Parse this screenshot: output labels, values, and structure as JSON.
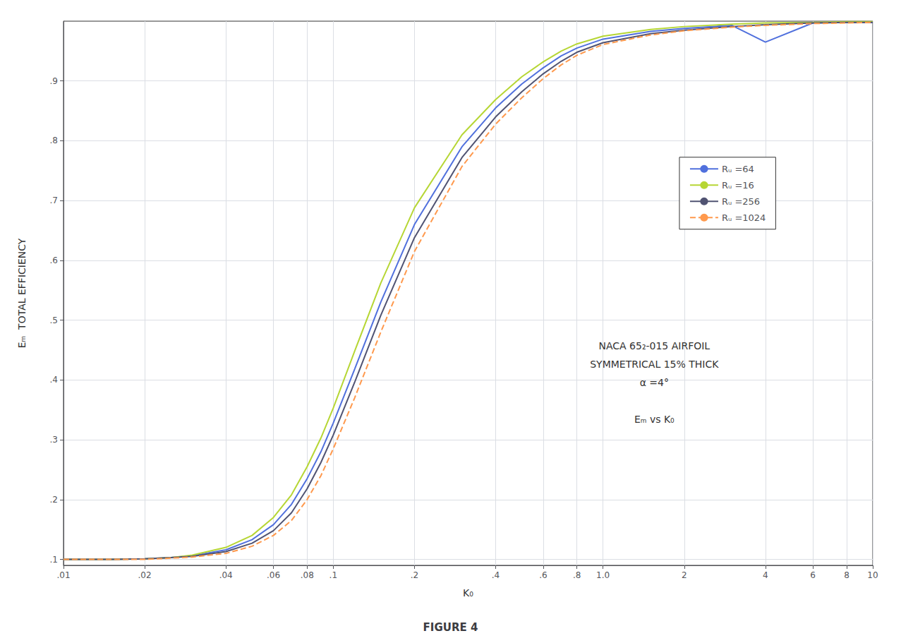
{
  "chart_data": {
    "type": "line",
    "title": "FIGURE 4",
    "xlabel": "K₀",
    "ylabel": "Eₘ  TOTAL EFFICIENCY",
    "log": "x",
    "grid": true,
    "legend": "upper right",
    "xlim": [
      0.01,
      10.0
    ],
    "xticks": [
      {
        "value": 0.01,
        "label": ".01"
      },
      {
        "value": 0.02,
        "label": ".02"
      },
      {
        "value": 0.04,
        "label": ".04"
      },
      {
        "value": 0.06,
        "label": ".06"
      },
      {
        "value": 0.08,
        "label": ".08"
      },
      {
        "value": 0.1,
        "label": ".1"
      },
      {
        "value": 0.2,
        "label": ".2"
      },
      {
        "value": 0.4,
        "label": ".4"
      },
      {
        "value": 0.6,
        "label": ".6"
      },
      {
        "value": 0.8,
        "label": ".8"
      },
      {
        "value": 1.0,
        "label": "1.0"
      },
      2,
      4,
      6,
      8,
      10
    ],
    "ylim": [
      0.09,
      1.0
    ],
    "yticks": [
      {
        "value": 0.1,
        "label": ".1"
      },
      {
        "value": 0.2,
        "label": ".2"
      },
      {
        "value": 0.3,
        "label": ".3"
      },
      {
        "value": 0.4,
        "label": ".4"
      },
      {
        "value": 0.5,
        "label": ".5"
      },
      {
        "value": 0.6,
        "label": ".6"
      },
      {
        "value": 0.7,
        "label": ".7"
      },
      {
        "value": 0.8,
        "label": ".8"
      },
      {
        "value": 0.9,
        "label": ".9"
      }
    ],
    "annotations": [
      "NACA 65₂-015 AIRFOIL\nSYMMETRICAL 15% THICK\nα =4°\n\nEₘ vs K₀"
    ],
    "x": [
      0.01,
      0.012,
      0.015,
      0.02,
      0.025,
      0.03,
      0.04,
      0.05,
      0.06,
      0.07,
      0.08,
      0.09,
      0.1,
      0.12,
      0.15,
      0.2,
      0.3,
      0.4,
      0.5,
      0.6,
      0.7,
      0.8,
      1.0,
      1.5,
      2.0,
      3.0,
      4.0,
      6.0,
      8.0,
      10.0
    ],
    "series": [
      {
        "name": "Rᵤ =64",
        "line_style": "solid",
        "values": [
          0.1,
          0.1,
          0.1,
          0.101,
          0.103,
          0.106,
          0.116,
          0.133,
          0.158,
          0.192,
          0.235,
          0.28,
          0.328,
          0.418,
          0.53,
          0.66,
          0.79,
          0.855,
          0.895,
          0.922,
          0.942,
          0.955,
          0.97,
          0.983,
          0.988,
          0.993,
          0.965,
          0.997,
          0.998,
          0.998
        ]
      },
      {
        "name": "Rᵤ =16",
        "line_style": "solid",
        "values": [
          0.1,
          0.1,
          0.1,
          0.101,
          0.103,
          0.107,
          0.12,
          0.14,
          0.17,
          0.208,
          0.255,
          0.303,
          0.353,
          0.448,
          0.562,
          0.688,
          0.81,
          0.869,
          0.907,
          0.932,
          0.95,
          0.962,
          0.975,
          0.986,
          0.991,
          0.995,
          0.997,
          0.998,
          0.999,
          0.999
        ]
      },
      {
        "name": "Rᵤ =256",
        "line_style": "solid",
        "values": [
          0.1,
          0.1,
          0.1,
          0.101,
          0.103,
          0.105,
          0.113,
          0.127,
          0.148,
          0.178,
          0.218,
          0.262,
          0.308,
          0.396,
          0.508,
          0.638,
          0.772,
          0.84,
          0.882,
          0.912,
          0.933,
          0.948,
          0.964,
          0.979,
          0.985,
          0.991,
          0.994,
          0.997,
          0.998,
          0.998
        ]
      },
      {
        "name": "Rᵤ =1024",
        "line_style": "dashed",
        "values": [
          0.1,
          0.1,
          0.1,
          0.1,
          0.102,
          0.104,
          0.11,
          0.122,
          0.14,
          0.165,
          0.2,
          0.24,
          0.285,
          0.37,
          0.48,
          0.615,
          0.757,
          0.828,
          0.872,
          0.904,
          0.927,
          0.943,
          0.961,
          0.977,
          0.984,
          0.99,
          0.993,
          0.996,
          0.997,
          0.998
        ]
      }
    ]
  }
}
